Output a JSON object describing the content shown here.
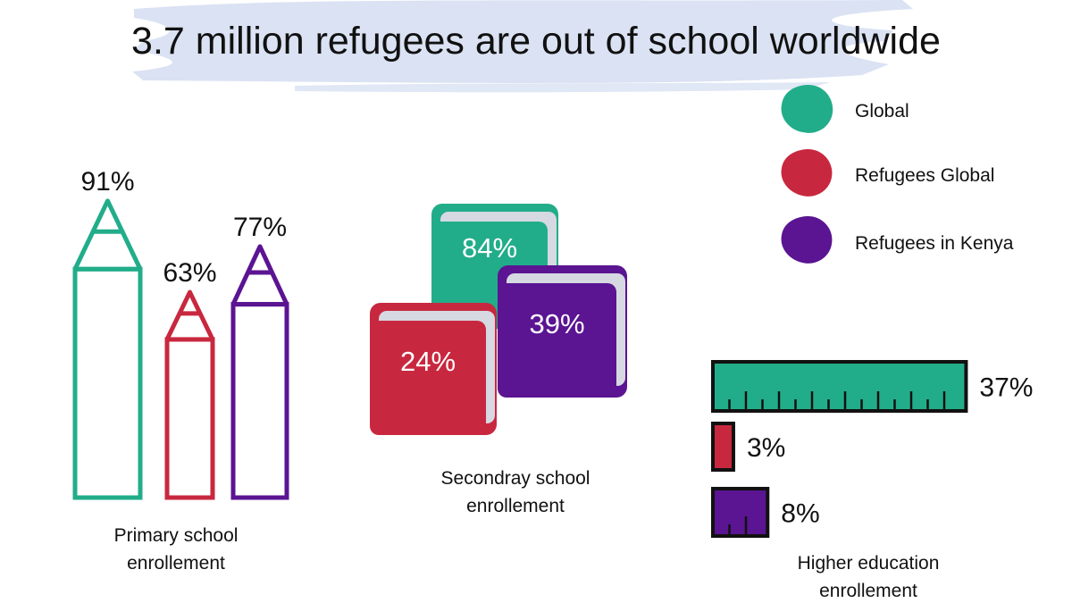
{
  "title": "3.7 million refugees are out of school worldwide",
  "colors": {
    "global": "#22ad8a",
    "refugees_global": "#c8283f",
    "refugees_kenya": "#5b1492",
    "brush": "#d3ddf1",
    "outline": "#111111"
  },
  "legend": {
    "items": [
      {
        "label": "Global",
        "color": "#22ad8a",
        "icon": "paint-blob-icon"
      },
      {
        "label": "Refugees Global",
        "color": "#c8283f",
        "icon": "paint-blob-icon"
      },
      {
        "label": "Refugees in Kenya",
        "color": "#5b1492",
        "icon": "paint-blob-icon"
      }
    ]
  },
  "chart_data": [
    {
      "type": "bar",
      "marker": "pencil-icon",
      "caption": [
        "Primary school",
        "enrollement"
      ],
      "categories": [
        "Global",
        "Refugees Global",
        "Refugees in Kenya"
      ],
      "values": [
        91,
        63,
        77
      ],
      "labels": [
        "91%",
        "63%",
        "77%"
      ],
      "unit": "%"
    },
    {
      "type": "bar",
      "marker": "book-icon",
      "caption": [
        "Secondray school",
        "enrollement"
      ],
      "categories": [
        "Global",
        "Refugees Global",
        "Refugees in Kenya"
      ],
      "values": [
        84,
        24,
        39
      ],
      "labels": [
        "84%",
        "24%",
        "39%"
      ],
      "unit": "%"
    },
    {
      "type": "bar",
      "marker": "ruler-icon",
      "caption": [
        "Higher education",
        "enrollement"
      ],
      "categories": [
        "Global",
        "Refugees Global",
        "Refugees in Kenya"
      ],
      "values": [
        37,
        3,
        8
      ],
      "labels": [
        "37%",
        "3%",
        "8%"
      ],
      "unit": "%"
    }
  ]
}
